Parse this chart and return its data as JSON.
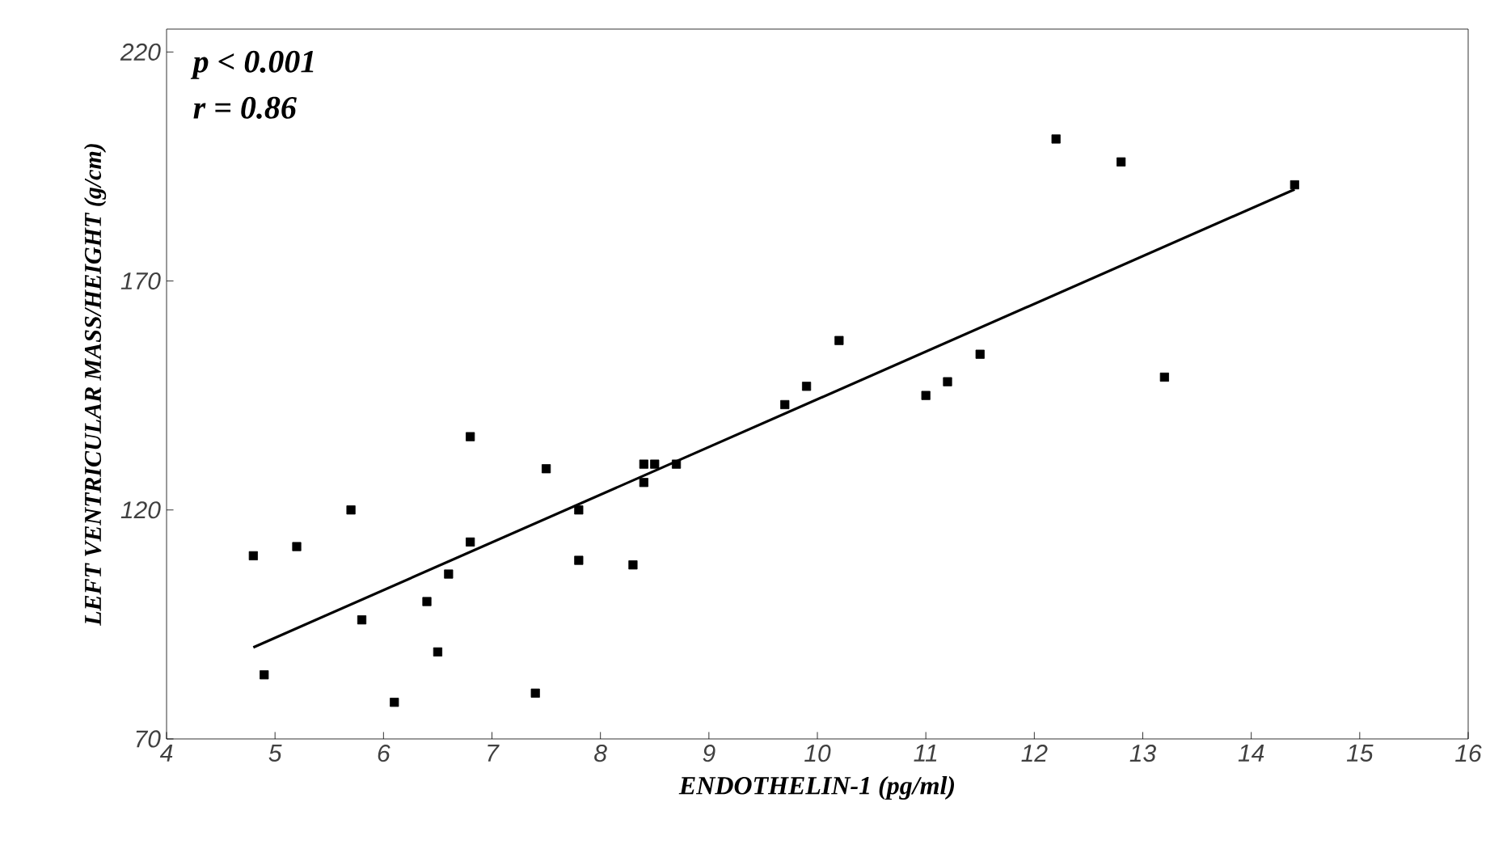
{
  "chart_data": {
    "type": "scatter",
    "xlabel": "ENDOTHELIN-1  (pg/ml)",
    "ylabel": "LEFT VENTRICULAR MASS/HEIGHT  (g/cm)",
    "annotations": [
      "p  <  0.001",
      "r  =  0.86"
    ],
    "xlim": [
      4,
      16
    ],
    "xticks": [
      4,
      5,
      6,
      7,
      8,
      9,
      10,
      11,
      12,
      13,
      14,
      15,
      16
    ],
    "ylim": [
      70,
      225
    ],
    "yticks": [
      70,
      120,
      170,
      220
    ],
    "grid": false,
    "series": [
      {
        "color": "#000000",
        "marker": "square",
        "x": [
          4.8,
          4.9,
          5.2,
          5.7,
          5.8,
          6.1,
          6.4,
          6.5,
          6.6,
          6.8,
          6.8,
          7.4,
          7.5,
          7.8,
          7.8,
          8.3,
          8.4,
          8.4,
          8.5,
          8.7,
          9.7,
          9.9,
          10.2,
          11.0,
          11.2,
          11.5,
          12.2,
          12.8,
          13.2,
          14.4
        ],
        "values": [
          110,
          84,
          112,
          120,
          96,
          78,
          100,
          89,
          106,
          113,
          136,
          80,
          129,
          120,
          109,
          108,
          126,
          130,
          130,
          130,
          143,
          147,
          157,
          145,
          148,
          154,
          201,
          196,
          149,
          191
        ]
      },
      {
        "type": "line",
        "color": "#000000",
        "marker": "none",
        "line_style": "solid",
        "x": [
          4.8,
          14.4
        ],
        "values": [
          90,
          190
        ]
      }
    ]
  }
}
